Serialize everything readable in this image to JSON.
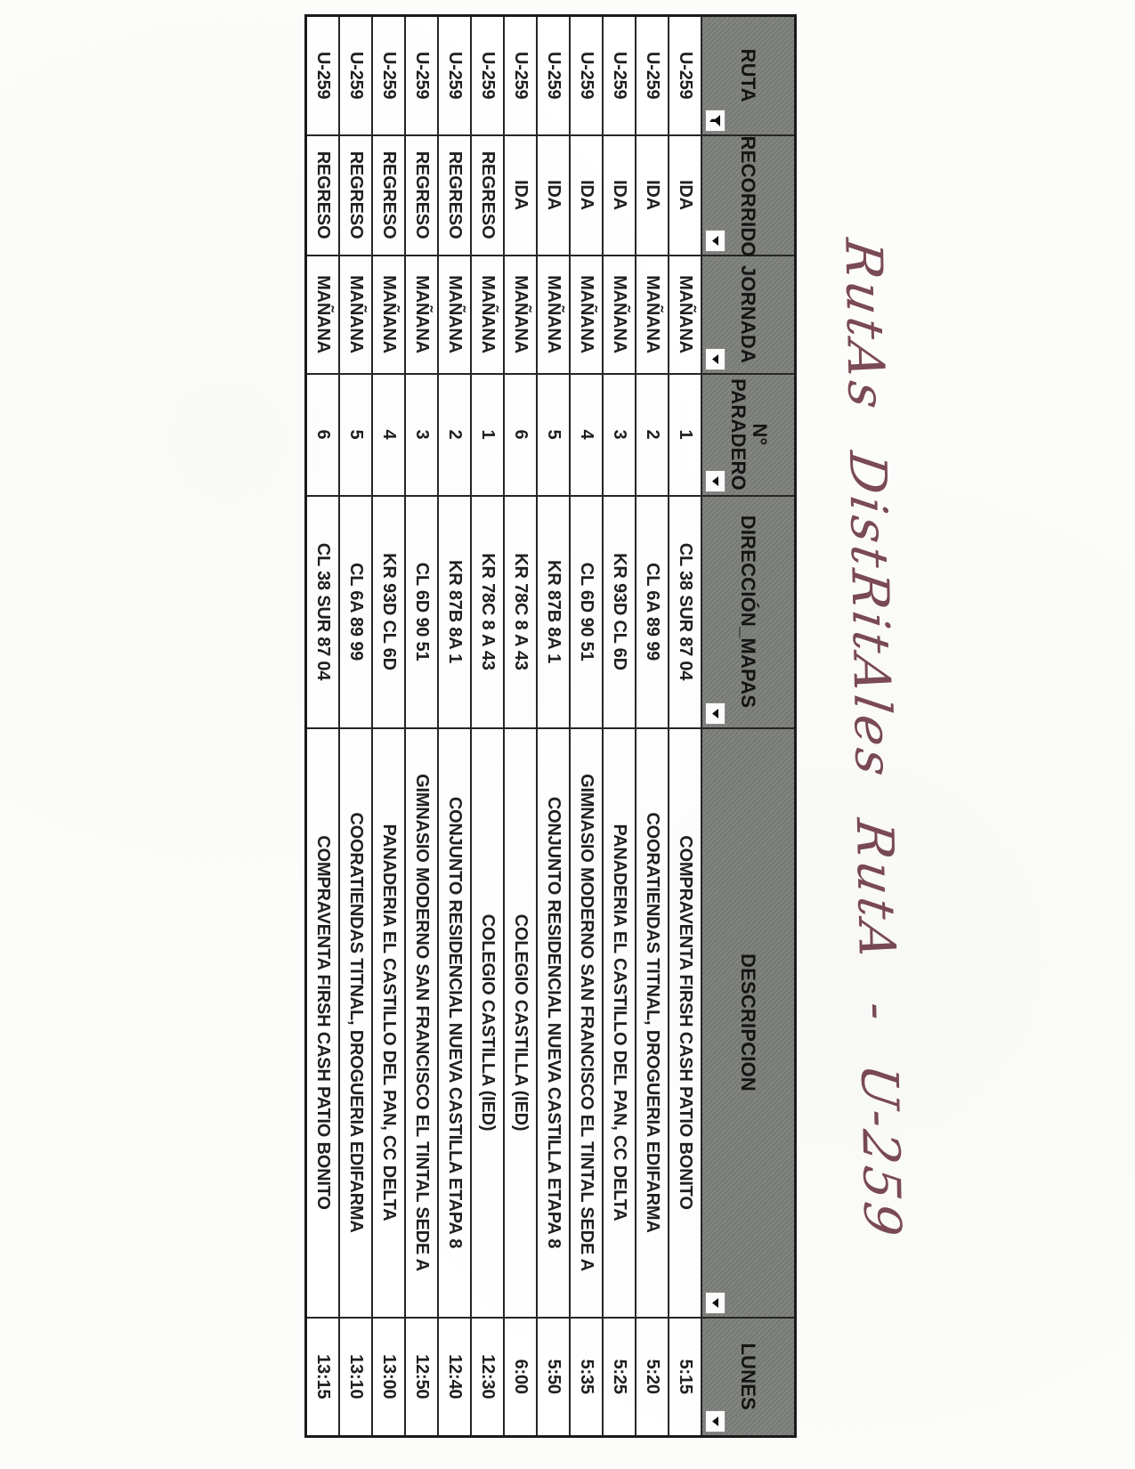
{
  "title": {
    "handwritten": "RutAs DistRitAles RutA - U-259"
  },
  "colors": {
    "header_bg": "#7c807a",
    "grid_ink": "#262626",
    "text_ink": "#1f1f1f",
    "handwriting_ink": "#7a4a56",
    "paper": "#fcfcfa"
  },
  "table": {
    "headers": [
      {
        "label": "RUTA",
        "filter": "funnel-active"
      },
      {
        "label": "RECORRIDO",
        "filter": "dropdown"
      },
      {
        "label": "JORNADA",
        "filter": "dropdown"
      },
      {
        "label": "N° PARADERO",
        "filter": "dropdown"
      },
      {
        "label": "DIRECCIÓN_MAPAS",
        "filter": "dropdown"
      },
      {
        "label": "DESCRIPCION",
        "filter": "dropdown"
      },
      {
        "label": "LUNES",
        "filter": "dropdown"
      }
    ],
    "rows": [
      {
        "ruta": "U-259",
        "recorrido": "IDA",
        "jornada": "MAÑANA",
        "paradero": "1",
        "direccion": "CL 38 SUR 87 04",
        "descripcion": "COMPRAVENTA FIRSH CASH PATIO BONITO",
        "lunes": "5:15"
      },
      {
        "ruta": "U-259",
        "recorrido": "IDA",
        "jornada": "MAÑANA",
        "paradero": "2",
        "direccion": "CL 6A 89 99",
        "descripcion": "COORATIENDAS TITNAL, DROGUERIA EDIFARMA",
        "lunes": "5:20"
      },
      {
        "ruta": "U-259",
        "recorrido": "IDA",
        "jornada": "MAÑANA",
        "paradero": "3",
        "direccion": "KR 93D CL 6D",
        "descripcion": "PANADERIA EL CASTILLO DEL PAN, CC DELTA",
        "lunes": "5:25"
      },
      {
        "ruta": "U-259",
        "recorrido": "IDA",
        "jornada": "MAÑANA",
        "paradero": "4",
        "direccion": "CL 6D 90 51",
        "descripcion": "GIMNASIO MODERNO SAN FRANCISCO EL TINTAL SEDE A",
        "lunes": "5:35"
      },
      {
        "ruta": "U-259",
        "recorrido": "IDA",
        "jornada": "MAÑANA",
        "paradero": "5",
        "direccion": "KR 87B 8A 1",
        "descripcion": "CONJUNTO RESIDENCIAL NUEVA CASTILLA ETAPA 8",
        "lunes": "5:50"
      },
      {
        "ruta": "U-259",
        "recorrido": "IDA",
        "jornada": "MAÑANA",
        "paradero": "6",
        "direccion": "KR 78C 8 A 43",
        "descripcion": "COLEGIO CASTILLA (IED)",
        "lunes": "6:00"
      },
      {
        "ruta": "U-259",
        "recorrido": "REGRESO",
        "jornada": "MAÑANA",
        "paradero": "1",
        "direccion": "KR 78C 8 A 43",
        "descripcion": "COLEGIO CASTILLA (IED)",
        "lunes": "12:30"
      },
      {
        "ruta": "U-259",
        "recorrido": "REGRESO",
        "jornada": "MAÑANA",
        "paradero": "2",
        "direccion": "KR 87B 8A 1",
        "descripcion": "CONJUNTO RESIDENCIAL NUEVA CASTILLA ETAPA 8",
        "lunes": "12:40"
      },
      {
        "ruta": "U-259",
        "recorrido": "REGRESO",
        "jornada": "MAÑANA",
        "paradero": "3",
        "direccion": "CL 6D 90 51",
        "descripcion": "GIMNASIO MODERNO SAN FRANCISCO EL TINTAL SEDE A",
        "lunes": "12:50"
      },
      {
        "ruta": "U-259",
        "recorrido": "REGRESO",
        "jornada": "MAÑANA",
        "paradero": "4",
        "direccion": "KR 93D CL 6D",
        "descripcion": "PANADERIA EL CASTILLO DEL PAN, CC DELTA",
        "lunes": "13:00"
      },
      {
        "ruta": "U-259",
        "recorrido": "REGRESO",
        "jornada": "MAÑANA",
        "paradero": "5",
        "direccion": "CL 6A 89 99",
        "descripcion": "COORATIENDAS TITNAL, DROGUERIA EDIFARMA",
        "lunes": "13:10"
      },
      {
        "ruta": "U-259",
        "recorrido": "REGRESO",
        "jornada": "MAÑANA",
        "paradero": "6",
        "direccion": "CL 38 SUR 87 04",
        "descripcion": "COMPRAVENTA FIRSH CASH PATIO BONITO",
        "lunes": "13:15"
      }
    ]
  }
}
